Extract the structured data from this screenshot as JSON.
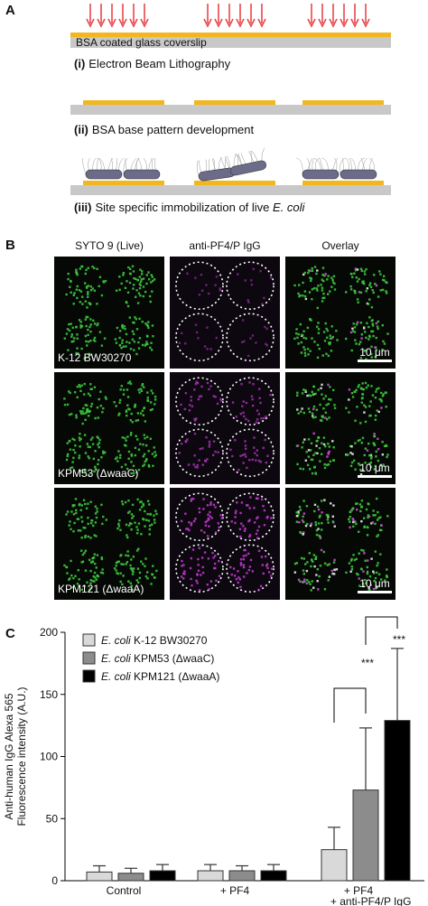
{
  "panel_a": {
    "label": "A",
    "substrate": "BSA coated glass coverslip",
    "steps": [
      {
        "step": "(i)",
        "text": "Electron Beam Lithography"
      },
      {
        "step": "(ii)",
        "text": "BSA base pattern development"
      },
      {
        "step": "(iii)",
        "text": "Site specific immobilization of live E. coli"
      }
    ]
  },
  "panel_b": {
    "label": "B",
    "columns": [
      "SYTO 9 (Live)",
      "anti-PF4/P IgG",
      "Overlay"
    ],
    "rows": [
      "K-12 BW30270",
      "KPM53 (ΔwaaC)",
      "KPM121 (ΔwaaA)"
    ],
    "scale_bar": "10 μm"
  },
  "chart_data": {
    "type": "bar",
    "panel_label": "C",
    "ylabel": [
      "Anti-human IgG Alexa 565",
      "Fluorescence intensity (A.U.)"
    ],
    "categories": [
      "Control",
      "+ PF4",
      "+ PF4\n+ anti-PF4/P IgG"
    ],
    "series": [
      {
        "name": "E. coli K-12 BW30270",
        "color": "#d9d9d9",
        "values": [
          7,
          8,
          25
        ],
        "errors": [
          5,
          5,
          18
        ]
      },
      {
        "name": "E. coli KPM53 (ΔwaaC)",
        "color": "#8c8c8c",
        "values": [
          6,
          8,
          73
        ],
        "errors": [
          4,
          4,
          50
        ]
      },
      {
        "name": "E. coli KPM121 (ΔwaaA)",
        "color": "#000000",
        "values": [
          8,
          8,
          129
        ],
        "errors": [
          5,
          5,
          58
        ]
      }
    ],
    "ylim": [
      0,
      200
    ],
    "yticks": [
      0,
      50,
      100,
      150,
      200
    ],
    "annotations": [
      "***",
      "***"
    ],
    "legend": "upper left"
  }
}
